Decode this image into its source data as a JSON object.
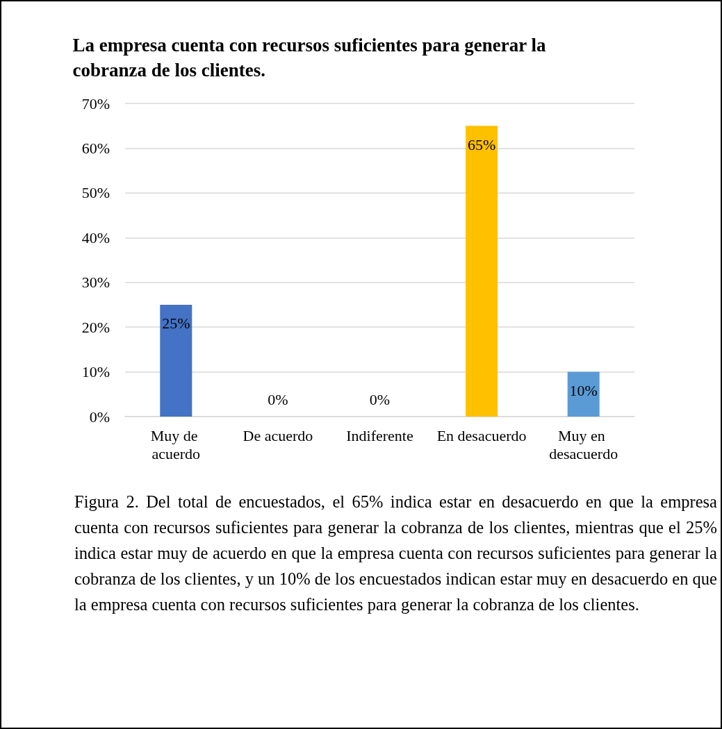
{
  "chart_data": {
    "type": "bar",
    "title": "La empresa cuenta con recursos suficientes para generar la cobranza de los clientes.",
    "categories": [
      "Muy de acuerdo",
      "De acuerdo",
      "Indiferente",
      "En desacuerdo",
      "Muy en desacuerdo"
    ],
    "values": [
      25,
      0,
      0,
      65,
      10
    ],
    "colors": [
      "#4472c4",
      "#ed7d31",
      "#a5a5a5",
      "#ffc000",
      "#5b9bd5"
    ],
    "value_labels": [
      "25%",
      "0%",
      "0%",
      "65%",
      "10%"
    ],
    "ylim": [
      0,
      70
    ],
    "yticks": [
      {
        "value": 0,
        "label": "0%"
      },
      {
        "value": 10,
        "label": "10%"
      },
      {
        "value": 20,
        "label": "20%"
      },
      {
        "value": 30,
        "label": "30%"
      },
      {
        "value": 40,
        "label": "40%"
      },
      {
        "value": 50,
        "label": "50%"
      },
      {
        "value": 60,
        "label": "60%"
      },
      {
        "value": 70,
        "label": "70%"
      }
    ],
    "grid": "y",
    "annotations": [
      "Figura 2. Del total de encuestados, el 65% indica estar en desacuerdo en que la empresa cuenta con recursos suficientes para generar la cobranza de los clientes, mientras que el 25% indica estar muy de acuerdo en que la empresa cuenta con recursos suficientes para generar la cobranza de los clientes, y un 10% de los encuestados indican estar muy en desacuerdo en que la empresa cuenta con recursos suficientes para generar la cobranza de los clientes."
    ]
  }
}
